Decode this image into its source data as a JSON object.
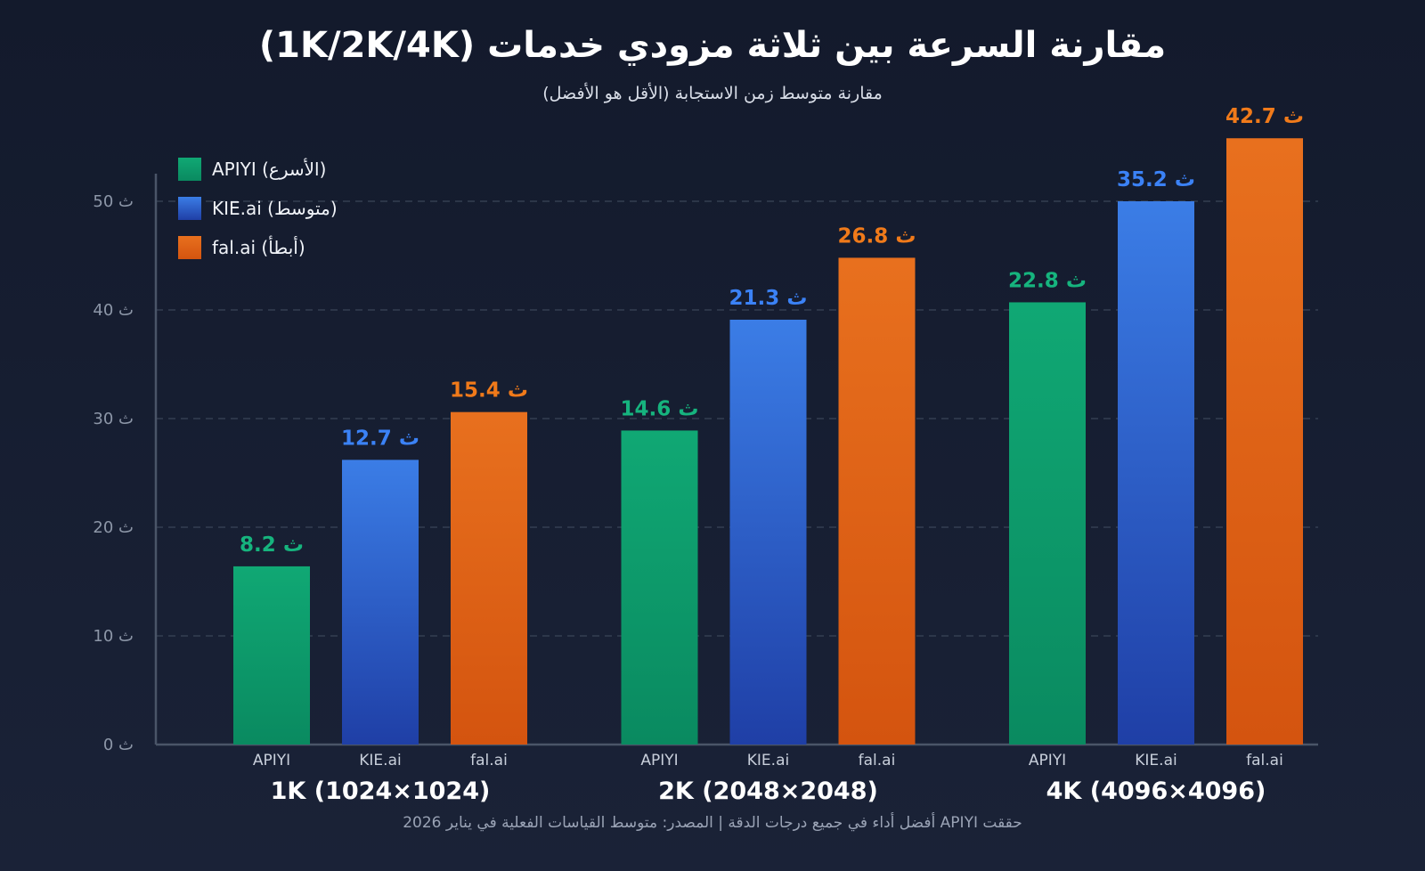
{
  "chart_data": {
    "type": "bar",
    "title": "مقارنة السرعة بين ثلاثة مزودي خدمات (1K/2K/4K)",
    "subtitle": "مقارنة متوسط زمن الاستجابة (الأقل هو الأفضل)",
    "footer": "حققت APIYI أفضل أداء في جميع درجات الدقة | المصدر: متوسط القياسات الفعلية في يناير 2026",
    "categories": [
      "1K (1024×1024)",
      "2K (2048×2048)",
      "4K (4096×4096)"
    ],
    "providers": [
      "APIYI",
      "KIE.ai",
      "fal.ai"
    ],
    "series": [
      {
        "name": "APIYI (الأسرع)",
        "provider": "APIYI",
        "color": "#10a874",
        "color_end": "#0a8a60",
        "labels": [
          "8.2 ث",
          "14.6 ث",
          "22.8 ث"
        ],
        "values": [
          8.2,
          14.6,
          22.8
        ],
        "bar_values": [
          16.4,
          28.9,
          40.7
        ]
      },
      {
        "name": "KIE.ai (متوسط)",
        "provider": "KIE.ai",
        "color": "#3b7de6",
        "color_end": "#1f3fa6",
        "labels": [
          "12.7 ث",
          "21.3 ث",
          "35.2 ث"
        ],
        "values": [
          12.7,
          21.3,
          35.2
        ],
        "bar_values": [
          26.2,
          39.1,
          50.0
        ]
      },
      {
        "name": "fal.ai (أبطأ)",
        "provider": "fal.ai",
        "color": "#e8701e",
        "color_end": "#d4540f",
        "labels": [
          "15.4 ث",
          "26.8 ث",
          "42.7 ث"
        ],
        "values": [
          15.4,
          26.8,
          42.7
        ],
        "bar_values": [
          30.6,
          44.8,
          55.8
        ]
      }
    ],
    "label_colors": [
      "#16b47e",
      "#3b82f6",
      "#f07a1a"
    ],
    "yticks": [
      "0 ث",
      "10 ث",
      "20 ث",
      "30 ث",
      "40 ث",
      "50 ث"
    ],
    "ytick_values": [
      0,
      10,
      20,
      30,
      40,
      50
    ],
    "ylim": [
      0,
      52.5
    ],
    "grid": true,
    "legend": "top-left"
  }
}
